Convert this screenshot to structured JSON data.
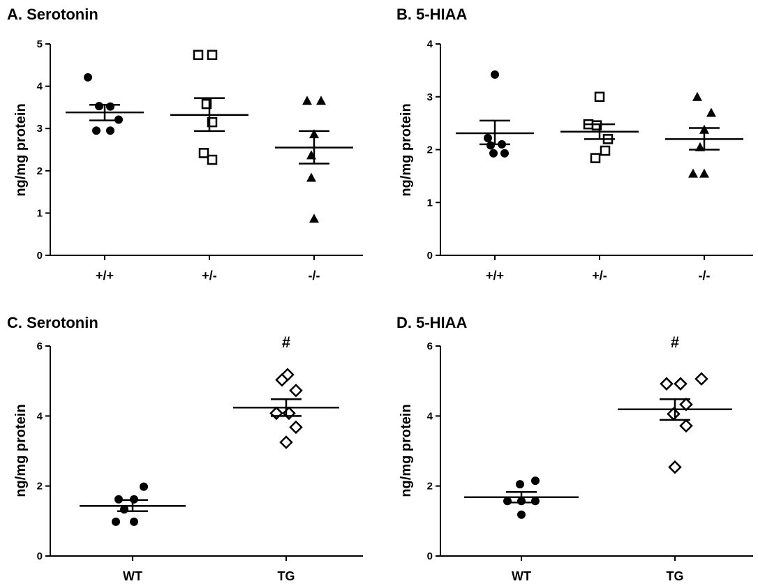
{
  "chart_data": [
    {
      "type": "scatter",
      "title": "A. Serotonin",
      "ylabel": "ng/mg protein",
      "ylim": [
        0,
        5
      ],
      "yticks": [
        0,
        1,
        2,
        3,
        4,
        5
      ],
      "categories": [
        "+/+",
        "+/-",
        "-/-"
      ],
      "series": [
        {
          "category": "+/+",
          "marker": "filled-circle",
          "points": [
            4.21,
            3.53,
            3.52,
            3.21,
            2.95,
            2.95
          ],
          "mean": 3.38,
          "sem_low": 3.19,
          "sem_high": 3.56
        },
        {
          "category": "+/-",
          "marker": "open-square",
          "points": [
            4.74,
            4.74,
            3.58,
            3.15,
            2.42,
            2.26
          ],
          "mean": 3.32,
          "sem_low": 2.94,
          "sem_high": 3.72
        },
        {
          "category": "-/-",
          "marker": "filled-triangle",
          "points": [
            3.66,
            3.66,
            2.87,
            2.37,
            1.84,
            0.87
          ],
          "mean": 2.55,
          "sem_low": 2.17,
          "sem_high": 2.94
        }
      ]
    },
    {
      "type": "scatter",
      "title": "B. 5-HIAA",
      "ylabel": "ng/mg protein",
      "ylim": [
        0,
        4
      ],
      "yticks": [
        0,
        1,
        2,
        3,
        4
      ],
      "categories": [
        "+/+",
        "+/-",
        "-/-"
      ],
      "series": [
        {
          "category": "+/+",
          "marker": "filled-circle",
          "points": [
            3.42,
            2.22,
            2.1,
            2.08,
            1.93,
            1.93
          ],
          "mean": 2.31,
          "sem_low": 2.1,
          "sem_high": 2.55
        },
        {
          "category": "+/-",
          "marker": "open-square",
          "points": [
            3.0,
            2.48,
            2.46,
            2.2,
            1.98,
            1.84
          ],
          "mean": 2.34,
          "sem_low": 2.2,
          "sem_high": 2.48
        },
        {
          "category": "-/-",
          "marker": "filled-triangle",
          "points": [
            3.0,
            2.7,
            2.38,
            2.05,
            1.55,
            1.55
          ],
          "mean": 2.2,
          "sem_low": 2.0,
          "sem_high": 2.41
        }
      ]
    },
    {
      "type": "scatter",
      "title": "C. Serotonin",
      "ylabel": "ng/mg protein",
      "ylim": [
        0,
        6
      ],
      "yticks": [
        0,
        2,
        4,
        6
      ],
      "categories": [
        "WT",
        "TG"
      ],
      "annotations": [
        {
          "category": "TG",
          "text": "#"
        }
      ],
      "series": [
        {
          "category": "WT",
          "marker": "filled-circle",
          "points": [
            1.98,
            1.62,
            1.62,
            1.33,
            0.98,
            0.98
          ],
          "mean": 1.43,
          "sem_low": 1.28,
          "sem_high": 1.6
        },
        {
          "category": "TG",
          "marker": "open-diamond",
          "points": [
            5.18,
            5.03,
            4.73,
            4.08,
            4.08,
            3.68,
            3.25
          ],
          "mean": 4.24,
          "sem_low": 4.0,
          "sem_high": 4.48
        }
      ]
    },
    {
      "type": "scatter",
      "title": "D. 5-HIAA",
      "ylabel": "ng/mg protein",
      "ylim": [
        0,
        6
      ],
      "yticks": [
        0,
        2,
        4,
        6
      ],
      "categories": [
        "WT",
        "TG"
      ],
      "annotations": [
        {
          "category": "TG",
          "text": "#"
        }
      ],
      "series": [
        {
          "category": "WT",
          "marker": "filled-circle",
          "points": [
            2.15,
            2.05,
            1.57,
            1.57,
            1.57,
            1.18
          ],
          "mean": 1.68,
          "sem_low": 1.53,
          "sem_high": 1.83
        },
        {
          "category": "TG",
          "marker": "open-diamond",
          "points": [
            5.06,
            4.92,
            4.92,
            4.33,
            4.06,
            3.72,
            2.54
          ],
          "mean": 4.19,
          "sem_low": 3.89,
          "sem_high": 4.48
        }
      ]
    }
  ]
}
